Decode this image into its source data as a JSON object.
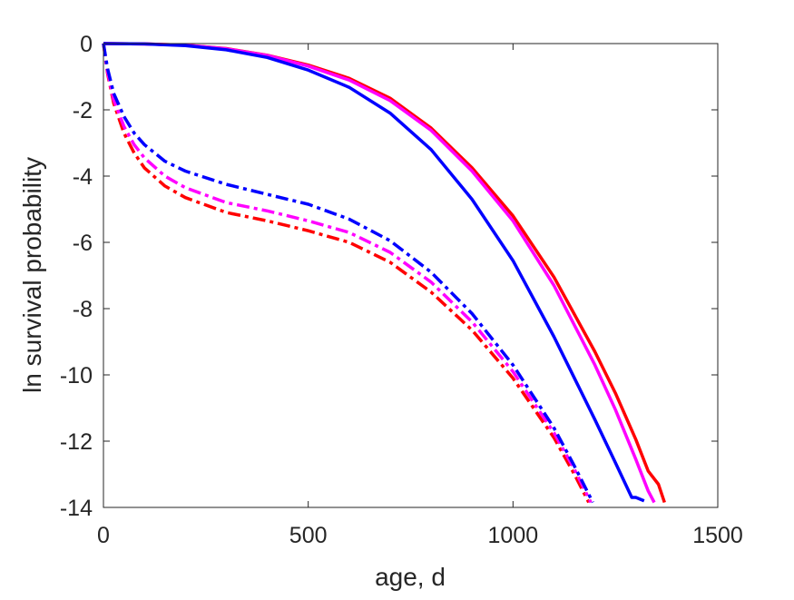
{
  "chart_data": {
    "type": "line",
    "title": "",
    "xlabel": "age, d",
    "ylabel": "ln survival probability",
    "xlim": [
      0,
      1500
    ],
    "ylim": [
      -14,
      0
    ],
    "xticks": [
      0,
      500,
      1000,
      1500
    ],
    "yticks": [
      0,
      -2,
      -4,
      -6,
      -8,
      -10,
      -12,
      -14
    ],
    "grid": false,
    "legend": "none",
    "series": [
      {
        "color": "#ff0000",
        "style": "solid",
        "x": [
          0,
          100,
          200,
          300,
          400,
          500,
          600,
          700,
          800,
          900,
          1000,
          1100,
          1200,
          1250,
          1300,
          1330,
          1355,
          1370
        ],
        "y": [
          0,
          -0.01,
          -0.05,
          -0.15,
          -0.35,
          -0.65,
          -1.05,
          -1.65,
          -2.55,
          -3.75,
          -5.2,
          -7.05,
          -9.3,
          -10.55,
          -11.95,
          -12.9,
          -13.3,
          -13.85
        ]
      },
      {
        "color": "#ff00ff",
        "style": "solid",
        "x": [
          0,
          100,
          200,
          300,
          400,
          500,
          600,
          700,
          800,
          900,
          1000,
          1100,
          1200,
          1250,
          1300,
          1330,
          1345
        ],
        "y": [
          0,
          -0.01,
          -0.05,
          -0.16,
          -0.36,
          -0.68,
          -1.1,
          -1.72,
          -2.62,
          -3.85,
          -5.35,
          -7.3,
          -9.7,
          -11.05,
          -12.55,
          -13.5,
          -13.85
        ]
      },
      {
        "color": "#0000ff",
        "style": "solid",
        "x": [
          0,
          100,
          200,
          300,
          400,
          500,
          600,
          700,
          800,
          900,
          1000,
          1100,
          1200,
          1250,
          1290,
          1300,
          1320
        ],
        "y": [
          0,
          -0.01,
          -0.06,
          -0.19,
          -0.42,
          -0.8,
          -1.32,
          -2.1,
          -3.2,
          -4.7,
          -6.55,
          -8.85,
          -11.35,
          -12.65,
          -13.7,
          -13.7,
          -13.8
        ]
      },
      {
        "color": "#ff0000",
        "style": "dashdot",
        "x": [
          0,
          10,
          25,
          50,
          75,
          100,
          150,
          200,
          300,
          400,
          500,
          600,
          700,
          800,
          900,
          1000,
          1100,
          1150,
          1185
        ],
        "y": [
          0,
          -0.9,
          -1.8,
          -2.7,
          -3.3,
          -3.75,
          -4.3,
          -4.65,
          -5.1,
          -5.35,
          -5.65,
          -6.0,
          -6.6,
          -7.5,
          -8.65,
          -10.1,
          -11.9,
          -13.0,
          -13.85
        ]
      },
      {
        "color": "#ff00ff",
        "style": "dashdot",
        "x": [
          0,
          10,
          25,
          50,
          75,
          100,
          150,
          200,
          300,
          400,
          500,
          600,
          700,
          800,
          900,
          1000,
          1100,
          1150,
          1190
        ],
        "y": [
          0,
          -0.85,
          -1.7,
          -2.5,
          -3.05,
          -3.45,
          -4.0,
          -4.35,
          -4.8,
          -5.05,
          -5.35,
          -5.7,
          -6.3,
          -7.2,
          -8.4,
          -9.9,
          -11.75,
          -12.85,
          -13.85
        ]
      },
      {
        "color": "#0000ff",
        "style": "dashdot",
        "x": [
          0,
          10,
          25,
          50,
          75,
          100,
          150,
          200,
          300,
          400,
          500,
          600,
          700,
          800,
          900,
          1000,
          1100,
          1150,
          1195
        ],
        "y": [
          0,
          -0.75,
          -1.5,
          -2.2,
          -2.7,
          -3.05,
          -3.55,
          -3.85,
          -4.25,
          -4.55,
          -4.85,
          -5.3,
          -5.95,
          -6.9,
          -8.15,
          -9.7,
          -11.6,
          -12.75,
          -13.85
        ]
      }
    ]
  }
}
